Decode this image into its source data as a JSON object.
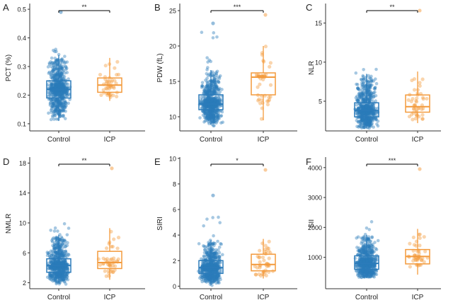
{
  "colors": {
    "control": "#2b7bba",
    "icp": "#f39a3c",
    "axis": "#333333",
    "sig": "#000000"
  },
  "chart_data": [
    {
      "type": "boxplot",
      "letter": "A",
      "ylabel": "PCT (%)",
      "categories": [
        "Control",
        "ICP"
      ],
      "yticks": [
        0.1,
        0.2,
        0.3,
        0.4,
        0.5
      ],
      "ylim": [
        0.075,
        0.52
      ],
      "boxes": [
        {
          "group": "Control",
          "whisker_low": 0.11,
          "q1": 0.19,
          "median": 0.22,
          "q3": 0.25,
          "whisker_high": 0.34,
          "n_points": 700,
          "point_min": 0.08,
          "point_max": 0.4
        },
        {
          "group": "ICP",
          "whisker_low": 0.18,
          "q1": 0.21,
          "median": 0.235,
          "q3": 0.26,
          "whisker_high": 0.33,
          "n_points": 45,
          "point_min": 0.18,
          "point_max": 0.34
        }
      ],
      "outliers": [
        {
          "group": "Control",
          "value": 0.49
        }
      ],
      "significance": "**"
    },
    {
      "type": "boxplot",
      "letter": "B",
      "ylabel": "PDW (fL)",
      "categories": [
        "Control",
        "ICP"
      ],
      "yticks": [
        10,
        15,
        20,
        25
      ],
      "ylim": [
        8,
        26
      ],
      "boxes": [
        {
          "group": "Control",
          "whisker_low": 8.9,
          "q1": 11.0,
          "median": 11.8,
          "q3": 13.1,
          "whisker_high": 16.6,
          "n_points": 700,
          "point_min": 8.6,
          "point_max": 22.0
        },
        {
          "group": "ICP",
          "whisker_low": 9.5,
          "q1": 13.1,
          "median": 15.6,
          "q3": 16.2,
          "whisker_high": 20.0,
          "n_points": 45,
          "point_min": 9.3,
          "point_max": 20.0
        }
      ],
      "outliers": [
        {
          "group": "Control",
          "value": 23.2
        },
        {
          "group": "ICP",
          "value": 24.4
        }
      ],
      "significance": "***"
    },
    {
      "type": "boxplot",
      "letter": "C",
      "ylabel": "NLR",
      "categories": [
        "Control",
        "ICP"
      ],
      "yticks": [
        5,
        10,
        15
      ],
      "ylim": [
        1.2,
        17.5
      ],
      "boxes": [
        {
          "group": "Control",
          "whisker_low": 1.5,
          "q1": 3.0,
          "median": 3.8,
          "q3": 4.8,
          "whisker_high": 8.5,
          "n_points": 700,
          "point_min": 1.4,
          "point_max": 9.5
        },
        {
          "group": "ICP",
          "whisker_low": 2.2,
          "q1": 3.6,
          "median": 4.3,
          "q3": 5.8,
          "whisker_high": 8.8,
          "n_points": 45,
          "point_min": 2.2,
          "point_max": 8.8
        }
      ],
      "outliers": [
        {
          "group": "ICP",
          "value": 16.6
        }
      ],
      "significance": "**"
    },
    {
      "type": "boxplot",
      "letter": "D",
      "ylabel": "NMLR",
      "categories": [
        "Control",
        "ICP"
      ],
      "yticks": [
        2,
        6,
        10,
        14,
        18
      ],
      "ylim": [
        1.2,
        18.8
      ],
      "boxes": [
        {
          "group": "Control",
          "whisker_low": 2.0,
          "q1": 3.4,
          "median": 4.3,
          "q3": 5.2,
          "whisker_high": 8.4,
          "n_points": 700,
          "point_min": 1.8,
          "point_max": 10.0
        },
        {
          "group": "ICP",
          "whisker_low": 2.4,
          "q1": 3.9,
          "median": 4.7,
          "q3": 6.2,
          "whisker_high": 9.3,
          "n_points": 45,
          "point_min": 2.4,
          "point_max": 9.3
        }
      ],
      "outliers": [
        {
          "group": "ICP",
          "value": 17.3
        }
      ],
      "significance": "**"
    },
    {
      "type": "boxplot",
      "letter": "E",
      "ylabel": "SIRI",
      "categories": [
        "Control",
        "ICP"
      ],
      "yticks": [
        0,
        2,
        4,
        6,
        8,
        10
      ],
      "ylim": [
        -0.2,
        10.1
      ],
      "boxes": [
        {
          "group": "Control",
          "whisker_low": 0.1,
          "q1": 1.0,
          "median": 1.45,
          "q3": 2.0,
          "whisker_high": 3.6,
          "n_points": 700,
          "point_min": 0.0,
          "point_max": 5.4
        },
        {
          "group": "ICP",
          "whisker_low": 0.6,
          "q1": 1.2,
          "median": 1.7,
          "q3": 2.5,
          "whisker_high": 3.7,
          "n_points": 45,
          "point_min": 0.6,
          "point_max": 4.8
        }
      ],
      "outliers": [
        {
          "group": "Control",
          "value": 7.1
        },
        {
          "group": "ICP",
          "value": 9.1
        }
      ],
      "significance": "*"
    },
    {
      "type": "boxplot",
      "letter": "F",
      "ylabel": "SII",
      "categories": [
        "Control",
        "ICP"
      ],
      "yticks": [
        1000,
        2000,
        3000,
        4000
      ],
      "ylim": [
        -50,
        4350
      ],
      "boxes": [
        {
          "group": "Control",
          "whisker_low": 300,
          "q1": 600,
          "median": 800,
          "q3": 1050,
          "whisker_high": 1750,
          "n_points": 700,
          "point_min": 150,
          "point_max": 2500
        },
        {
          "group": "ICP",
          "whisker_low": 420,
          "q1": 780,
          "median": 1030,
          "q3": 1260,
          "whisker_high": 1950,
          "n_points": 45,
          "point_min": 420,
          "point_max": 1950
        }
      ],
      "outliers": [
        {
          "group": "ICP",
          "value": 3950
        }
      ],
      "significance": "***"
    }
  ]
}
